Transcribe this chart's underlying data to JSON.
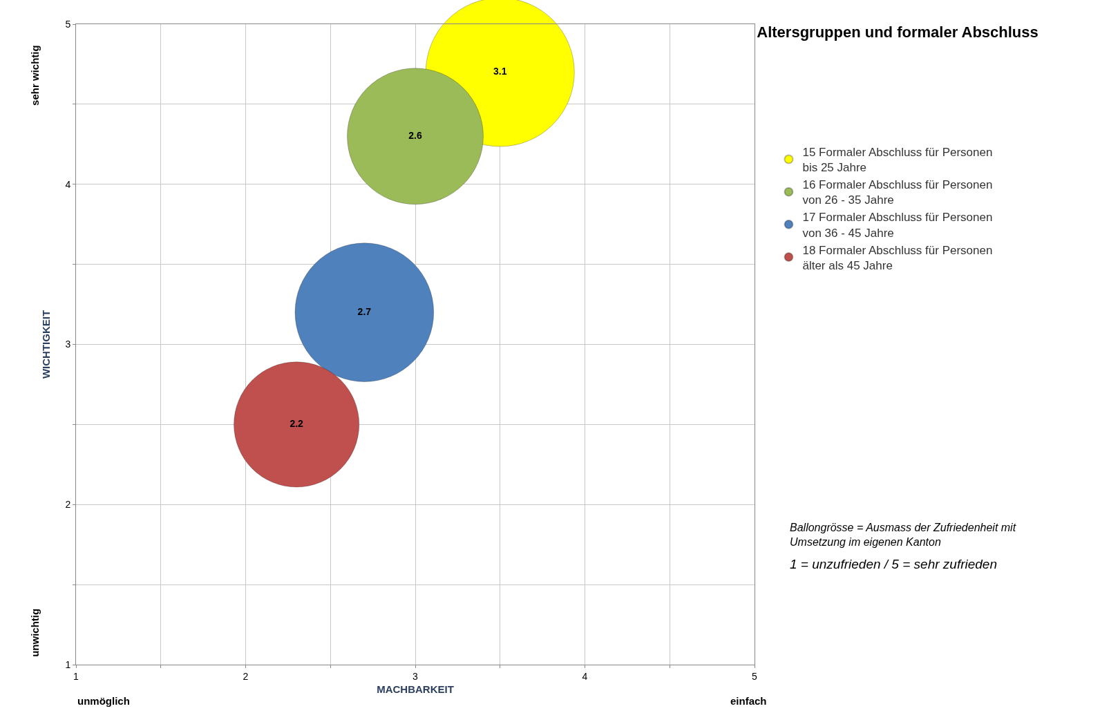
{
  "chart_data": {
    "type": "bubble",
    "title": "Altersgruppen und formaler Abschluss",
    "xlabel": "MACHBARKEIT",
    "ylabel": "WICHTIGKEIT",
    "xlim": [
      1,
      5
    ],
    "ylim": [
      1,
      5
    ],
    "xticks": [
      1,
      {
        "value": 1.5,
        "label": null
      },
      2,
      {
        "value": 2.5,
        "label": null
      },
      3,
      {
        "value": 3.5,
        "label": null
      },
      4,
      {
        "value": 4.5,
        "label": null
      },
      5
    ],
    "yticks": [
      1,
      {
        "value": 1.5,
        "label": null
      },
      2,
      {
        "value": 2.5,
        "label": null
      },
      3,
      {
        "value": 3.5,
        "label": null
      },
      4,
      {
        "value": 4.5,
        "label": null
      },
      5
    ],
    "grid": true,
    "legend": "right",
    "series": [
      {
        "name": "15 Formaler Abschluss für Personen\nbis 25 Jahre",
        "color": "#ffff00",
        "x": [
          3.5
        ],
        "values": [
          4.7
        ],
        "sizes": [
          3.1
        ],
        "value_labels": [
          "3.1"
        ]
      },
      {
        "name": "16 Formaler Abschluss für Personen\nvon 26 - 35 Jahre",
        "color": "#9bbb59",
        "x": [
          3.0
        ],
        "values": [
          4.3
        ],
        "sizes": [
          2.6
        ],
        "value_labels": [
          "2.6"
        ]
      },
      {
        "name": "17 Formaler Abschluss für Personen\nvon 36 - 45 Jahre",
        "color": "#4f81bd",
        "x": [
          2.7
        ],
        "values": [
          3.2
        ],
        "sizes": [
          2.7
        ],
        "value_labels": [
          "2.7"
        ]
      },
      {
        "name": "18 Formaler Abschluss für Personen\nälter als 45 Jahre",
        "color": "#c0504d",
        "x": [
          2.3
        ],
        "values": [
          2.5
        ],
        "sizes": [
          2.2
        ],
        "value_labels": [
          "2.2"
        ]
      }
    ],
    "annotations": [
      "sehr wichtig",
      "unwichtig",
      "unmöglich",
      "einfach",
      "Ballongrösse = Ausmass der Zufriedenheit mit\nUmsetzung im eigenen Kanton",
      "1 = unzufrieden / 5 = sehr zufrieden"
    ]
  }
}
